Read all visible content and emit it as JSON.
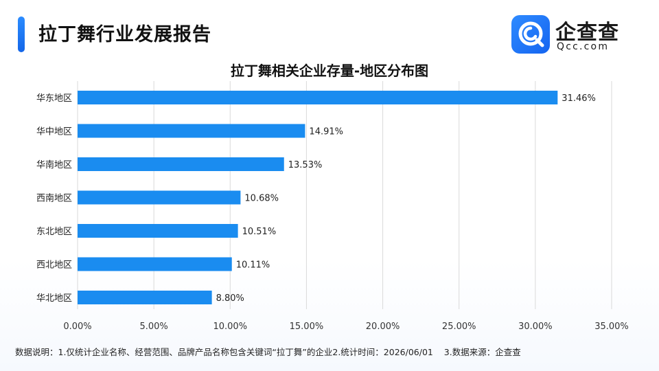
{
  "header": {
    "title": "拉丁舞行业发展报告",
    "logo_text": "企查查",
    "logo_sub": "Qcc.com"
  },
  "colors": {
    "accent": "#1a8cf0",
    "bar": "#1a8cf0",
    "grid": "#d9d9d9"
  },
  "chart_data": {
    "type": "bar",
    "orientation": "horizontal",
    "title": "拉丁舞相关企业存量-地区分布图",
    "categories": [
      "华东地区",
      "华中地区",
      "华南地区",
      "西南地区",
      "东北地区",
      "西北地区",
      "华北地区"
    ],
    "values": [
      31.46,
      14.91,
      13.53,
      10.68,
      10.51,
      10.11,
      8.8
    ],
    "value_labels": [
      "31.46%",
      "14.91%",
      "13.53%",
      "10.68%",
      "10.51%",
      "10.11%",
      "8.80%"
    ],
    "xlim": [
      0,
      35
    ],
    "xticks": [
      "0.00%",
      "5.00%",
      "10.00%",
      "15.00%",
      "20.00%",
      "25.00%",
      "30.00%",
      "35.00%"
    ],
    "grid": true,
    "legend": "none"
  },
  "footnote": {
    "part1": "数据说明：1.仅统计企业名称、经营范围、品牌产品名称包含关键词“拉丁舞”的企业2.统计时间：2026/06/01",
    "part2": "3.数据来源：企查查"
  }
}
